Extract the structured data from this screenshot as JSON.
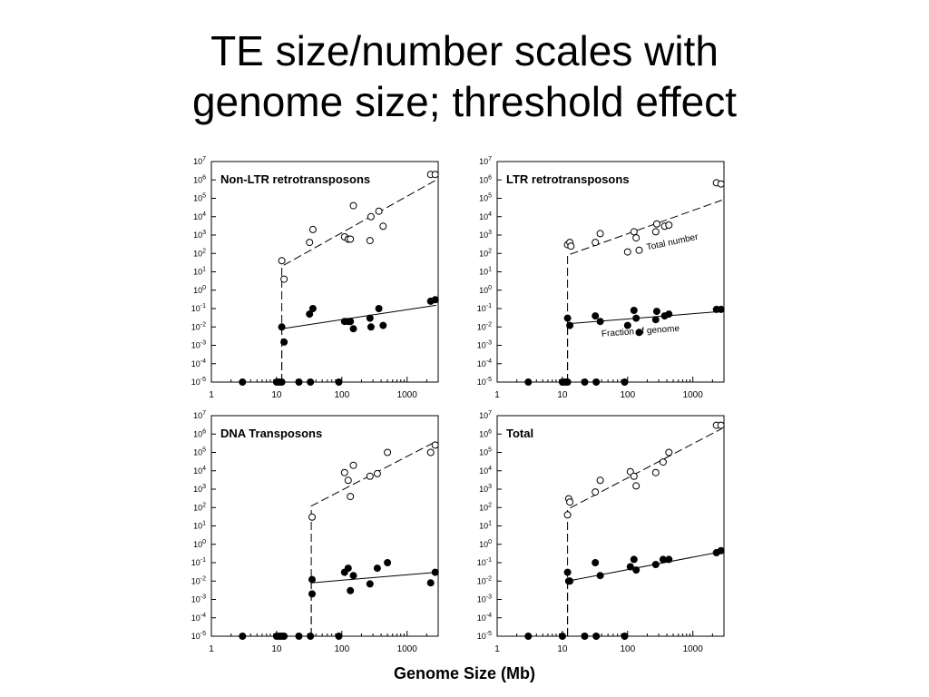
{
  "slide": {
    "title_line1": "TE size/number scales with",
    "title_line2": "genome size; threshold effect",
    "x_axis_title": "Genome Size (Mb)"
  },
  "chart_data": [
    {
      "type": "scatter",
      "title": "Non-LTR retrotransposons",
      "xlabel": "Genome Size (Mb)",
      "ylabel": "",
      "xscale": "log",
      "yscale": "log",
      "xlim": [
        1,
        3000
      ],
      "ylim": [
        1e-05,
        10000000
      ],
      "xticks": [
        "1",
        "10",
        "100",
        "1000"
      ],
      "yticks": [
        "10^-5",
        "10^-4",
        "10^-3",
        "10^-2",
        "10^-1",
        "10^0",
        "10^1",
        "10^2",
        "10^3",
        "10^4",
        "10^5",
        "10^6",
        "10^7"
      ],
      "annotations": [],
      "series": [
        {
          "marker": "open-circle",
          "points": [
            [
              12,
              40
            ],
            [
              13,
              4
            ],
            [
              32,
              400
            ],
            [
              36,
              2000
            ],
            [
              110,
              800
            ],
            [
              125,
              600
            ],
            [
              135,
              600
            ],
            [
              150,
              40000
            ],
            [
              270,
              500
            ],
            [
              280,
              10000
            ],
            [
              370,
              20000
            ],
            [
              430,
              3000
            ],
            [
              2300,
              2000000
            ],
            [
              2700,
              2000000
            ]
          ]
        },
        {
          "marker": "filled-circle",
          "points": [
            [
              12,
              0.01
            ],
            [
              13,
              0.0015
            ],
            [
              32,
              0.05
            ],
            [
              36,
              0.1
            ],
            [
              110,
              0.02
            ],
            [
              125,
              0.02
            ],
            [
              135,
              0.02
            ],
            [
              150,
              0.008
            ],
            [
              270,
              0.03
            ],
            [
              280,
              0.01
            ],
            [
              370,
              0.1
            ],
            [
              430,
              0.012
            ],
            [
              2300,
              0.25
            ],
            [
              2700,
              0.3
            ],
            [
              3,
              1e-05
            ],
            [
              10,
              1e-05
            ],
            [
              11,
              1e-05
            ],
            [
              12,
              1e-05
            ],
            [
              22,
              1e-05
            ],
            [
              33,
              1e-05
            ],
            [
              90,
              1e-05
            ]
          ]
        }
      ],
      "fits": [
        {
          "style": "dashed",
          "points": [
            [
              12,
              1e-05
            ],
            [
              12,
              20
            ],
            [
              2800,
              1000000
            ]
          ]
        },
        {
          "style": "dashed",
          "points": [
            [
              12,
              1e-05
            ],
            [
              12,
              0.01
            ]
          ]
        },
        {
          "style": "solid",
          "points": [
            [
              12,
              0.008
            ],
            [
              2800,
              0.15
            ]
          ]
        }
      ]
    },
    {
      "type": "scatter",
      "title": "LTR retrotransposons",
      "xlabel": "Genome Size (Mb)",
      "ylabel": "",
      "xscale": "log",
      "yscale": "log",
      "xlim": [
        1,
        3000
      ],
      "ylim": [
        1e-05,
        10000000
      ],
      "xticks": [
        "1",
        "10",
        "100",
        "1000"
      ],
      "yticks": [
        "10^-5",
        "10^-4",
        "10^-3",
        "10^-2",
        "10^-1",
        "10^0",
        "10^1",
        "10^2",
        "10^3",
        "10^4",
        "10^5",
        "10^6",
        "10^7"
      ],
      "annotations": [
        {
          "text": "Total number",
          "x": 200,
          "y": 150,
          "rotate": -12
        },
        {
          "text": "Fraction of genome",
          "x": 40,
          "y": 0.003,
          "rotate": -4
        }
      ],
      "series": [
        {
          "marker": "open-circle",
          "points": [
            [
              12,
              300
            ],
            [
              13,
              400
            ],
            [
              13.5,
              250
            ],
            [
              32,
              400
            ],
            [
              38,
              1200
            ],
            [
              100,
              120
            ],
            [
              125,
              1500
            ],
            [
              135,
              700
            ],
            [
              150,
              150
            ],
            [
              270,
              1500
            ],
            [
              280,
              4000
            ],
            [
              370,
              3000
            ],
            [
              430,
              3500
            ],
            [
              2300,
              700000
            ],
            [
              2700,
              600000
            ]
          ]
        },
        {
          "marker": "filled-circle",
          "points": [
            [
              12,
              0.03
            ],
            [
              13,
              0.012
            ],
            [
              32,
              0.04
            ],
            [
              38,
              0.02
            ],
            [
              100,
              0.012
            ],
            [
              125,
              0.08
            ],
            [
              135,
              0.03
            ],
            [
              150,
              0.005
            ],
            [
              270,
              0.025
            ],
            [
              280,
              0.07
            ],
            [
              370,
              0.04
            ],
            [
              430,
              0.05
            ],
            [
              2300,
              0.09
            ],
            [
              2700,
              0.09
            ],
            [
              3,
              1e-05
            ],
            [
              10,
              1e-05
            ],
            [
              11,
              1e-05
            ],
            [
              12,
              1e-05
            ],
            [
              22,
              1e-05
            ],
            [
              33,
              1e-05
            ],
            [
              90,
              1e-05
            ]
          ]
        }
      ],
      "fits": [
        {
          "style": "dashed",
          "points": [
            [
              12,
              1e-05
            ],
            [
              12,
              80
            ],
            [
              2800,
              80000
            ]
          ]
        },
        {
          "style": "dashed",
          "points": [
            [
              12,
              1e-05
            ],
            [
              12,
              0.015
            ]
          ]
        },
        {
          "style": "solid",
          "points": [
            [
              12,
              0.015
            ],
            [
              2800,
              0.07
            ]
          ]
        }
      ]
    },
    {
      "type": "scatter",
      "title": "DNA Transposons",
      "xlabel": "Genome Size (Mb)",
      "ylabel": "",
      "xscale": "log",
      "yscale": "log",
      "xlim": [
        1,
        3000
      ],
      "ylim": [
        1e-05,
        10000000
      ],
      "xticks": [
        "1",
        "10",
        "100",
        "1000"
      ],
      "yticks": [
        "10^-5",
        "10^-4",
        "10^-3",
        "10^-2",
        "10^-1",
        "10^0",
        "10^1",
        "10^2",
        "10^3",
        "10^4",
        "10^5",
        "10^6",
        "10^7"
      ],
      "annotations": [],
      "series": [
        {
          "marker": "open-circle",
          "points": [
            [
              35,
              30
            ],
            [
              110,
              8000
            ],
            [
              125,
              3000
            ],
            [
              135,
              400
            ],
            [
              150,
              20000
            ],
            [
              270,
              5000
            ],
            [
              350,
              7000
            ],
            [
              500,
              100000
            ],
            [
              2300,
              100000
            ],
            [
              2700,
              250000
            ]
          ]
        },
        {
          "marker": "filled-circle",
          "points": [
            [
              35,
              0.012
            ],
            [
              35,
              0.002
            ],
            [
              110,
              0.03
            ],
            [
              125,
              0.05
            ],
            [
              135,
              0.003
            ],
            [
              150,
              0.02
            ],
            [
              270,
              0.007
            ],
            [
              350,
              0.05
            ],
            [
              500,
              0.1
            ],
            [
              2300,
              0.008
            ],
            [
              2700,
              0.03
            ],
            [
              3,
              1e-05
            ],
            [
              10,
              1e-05
            ],
            [
              11,
              1e-05
            ],
            [
              12,
              1e-05
            ],
            [
              13,
              1e-05
            ],
            [
              22,
              1e-05
            ],
            [
              33,
              1e-05
            ],
            [
              90,
              1e-05
            ]
          ]
        }
      ],
      "fits": [
        {
          "style": "dashed",
          "points": [
            [
              34,
              1e-05
            ],
            [
              34,
              120
            ],
            [
              2800,
              400000
            ]
          ]
        },
        {
          "style": "dashed",
          "points": [
            [
              34,
              1e-05
            ],
            [
              34,
              0.008
            ]
          ]
        },
        {
          "style": "solid",
          "points": [
            [
              34,
              0.008
            ],
            [
              2800,
              0.03
            ]
          ]
        }
      ]
    },
    {
      "type": "scatter",
      "title": "Total",
      "xlabel": "Genome Size (Mb)",
      "ylabel": "",
      "xscale": "log",
      "yscale": "log",
      "xlim": [
        1,
        3000
      ],
      "ylim": [
        1e-05,
        10000000
      ],
      "xticks": [
        "1",
        "10",
        "100",
        "1000"
      ],
      "yticks": [
        "10^-5",
        "10^-4",
        "10^-3",
        "10^-2",
        "10^-1",
        "10^0",
        "10^1",
        "10^2",
        "10^3",
        "10^4",
        "10^5",
        "10^6",
        "10^7"
      ],
      "annotations": [],
      "series": [
        {
          "marker": "open-circle",
          "points": [
            [
              12,
              40
            ],
            [
              12.5,
              300
            ],
            [
              13,
              200
            ],
            [
              32,
              700
            ],
            [
              38,
              3000
            ],
            [
              110,
              9000
            ],
            [
              125,
              5000
            ],
            [
              135,
              1500
            ],
            [
              270,
              8000
            ],
            [
              350,
              30000
            ],
            [
              430,
              100000
            ],
            [
              2300,
              3000000
            ],
            [
              2700,
              3000000
            ]
          ]
        },
        {
          "marker": "filled-circle",
          "points": [
            [
              12,
              0.03
            ],
            [
              12.5,
              0.01
            ],
            [
              13,
              0.01
            ],
            [
              32,
              0.1
            ],
            [
              38,
              0.02
            ],
            [
              110,
              0.06
            ],
            [
              125,
              0.15
            ],
            [
              135,
              0.04
            ],
            [
              270,
              0.08
            ],
            [
              350,
              0.15
            ],
            [
              430,
              0.15
            ],
            [
              2300,
              0.35
            ],
            [
              2700,
              0.45
            ],
            [
              3,
              1e-05
            ],
            [
              10,
              1e-05
            ],
            [
              22,
              1e-05
            ],
            [
              33,
              1e-05
            ],
            [
              90,
              1e-05
            ]
          ]
        }
      ],
      "fits": [
        {
          "style": "dashed",
          "points": [
            [
              12,
              1e-05
            ],
            [
              12,
              80
            ],
            [
              2800,
              2000000
            ]
          ]
        },
        {
          "style": "dashed",
          "points": [
            [
              12,
              1e-05
            ],
            [
              12,
              0.01
            ]
          ]
        },
        {
          "style": "solid",
          "points": [
            [
              12,
              0.01
            ],
            [
              2800,
              0.4
            ]
          ]
        }
      ]
    }
  ]
}
